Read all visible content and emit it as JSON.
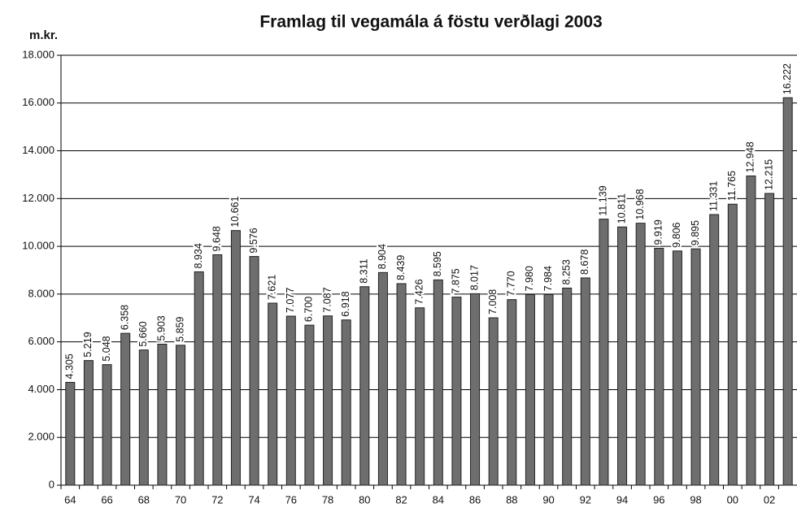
{
  "chart_data": {
    "type": "bar",
    "title": "Framlag til vegamála á föstu verðlagi 2003",
    "y_label": "m.kr.",
    "categories": [
      "64",
      null,
      "66",
      null,
      "68",
      null,
      "70",
      null,
      "72",
      null,
      "74",
      null,
      "76",
      null,
      "78",
      null,
      "80",
      null,
      "82",
      null,
      "84",
      null,
      "86",
      null,
      "88",
      null,
      "90",
      null,
      "92",
      null,
      "94",
      null,
      "96",
      null,
      "98",
      null,
      "00",
      null,
      "02",
      null
    ],
    "values": [
      4305,
      5219,
      5048,
      6358,
      5660,
      5903,
      5859,
      8934,
      9648,
      10661,
      9576,
      7621,
      7077,
      6700,
      7087,
      6918,
      8311,
      8904,
      8439,
      7426,
      8595,
      7875,
      8017,
      7008,
      7770,
      7980,
      7984,
      8253,
      8678,
      11139,
      10811,
      10968,
      9919,
      9806,
      9895,
      11331,
      11765,
      12948,
      12215,
      16222
    ],
    "value_labels": [
      "4.305",
      "5.219",
      "5.048",
      "6.358",
      "5.660",
      "5.903",
      "5.859",
      "8.934",
      "9.648",
      "10.661",
      "9.576",
      "7.621",
      "7.077",
      "6.700",
      "7.087",
      "6.918",
      "8.311",
      "8.904",
      "8.439",
      "7.426",
      "8.595",
      "7.875",
      "8.017",
      "7.008",
      "7.770",
      "7.980",
      "7.984",
      "8.253",
      "8.678",
      "11.139",
      "10.811",
      "10.968",
      "9.919",
      "9.806",
      "9.895",
      "11.331",
      "11.765",
      "12.948",
      "12.215",
      "16.222"
    ],
    "color": "#6e6e6e",
    "ylim": [
      0,
      18000
    ],
    "yticks": [
      0,
      {
        "value": 2000,
        "label": "2.000"
      },
      {
        "value": 4000,
        "label": "4.000"
      },
      {
        "value": 6000,
        "label": "6.000"
      },
      {
        "value": 8000,
        "label": "8.000"
      },
      {
        "value": 10000,
        "label": "10.000"
      },
      {
        "value": 12000,
        "label": "12.000"
      },
      {
        "value": 14000,
        "label": "14.000"
      },
      {
        "value": 16000,
        "label": "16.000"
      },
      {
        "value": 18000,
        "label": "18.000"
      }
    ],
    "grid": true
  }
}
